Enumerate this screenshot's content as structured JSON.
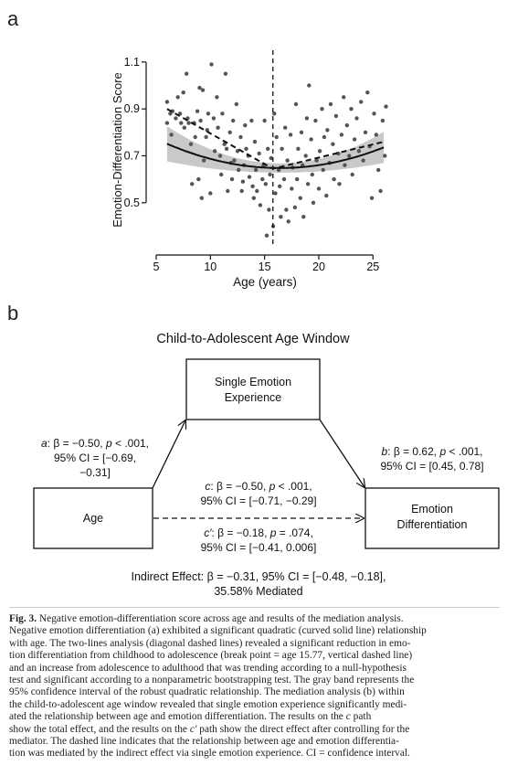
{
  "panel_a_label": "a",
  "panel_b_label": "b",
  "chart_data": {
    "type": "scatter",
    "title": "",
    "xlabel": "Age (years)",
    "ylabel": "Emotion-Differentiation Score",
    "xlim": [
      5,
      27
    ],
    "ylim": [
      0.32,
      1.15
    ],
    "xticks": [
      5,
      10,
      15,
      20,
      25
    ],
    "yticks": [
      0.5,
      0.7,
      0.9,
      1.1
    ],
    "ytick_labels": [
      "0.5",
      "0.7",
      "0.9",
      "1.1"
    ],
    "break_point": 15.77,
    "grid": false,
    "points": [
      [
        6.0,
        0.93
      ],
      [
        6.0,
        0.84
      ],
      [
        6.3,
        0.88
      ],
      [
        6.4,
        0.79
      ],
      [
        6.5,
        0.89
      ],
      [
        6.8,
        0.86
      ],
      [
        7.0,
        0.95
      ],
      [
        7.2,
        0.88
      ],
      [
        7.3,
        0.84
      ],
      [
        7.5,
        0.97
      ],
      [
        7.6,
        0.82
      ],
      [
        7.8,
        1.05
      ],
      [
        7.9,
        0.86
      ],
      [
        8.0,
        0.84
      ],
      [
        8.2,
        0.75
      ],
      [
        8.3,
        0.58
      ],
      [
        8.5,
        0.84
      ],
      [
        8.6,
        0.78
      ],
      [
        8.8,
        0.89
      ],
      [
        8.9,
        0.6
      ],
      [
        9.0,
        0.99
      ],
      [
        9.1,
        0.85
      ],
      [
        9.2,
        0.52
      ],
      [
        9.3,
        0.98
      ],
      [
        9.4,
        0.68
      ],
      [
        9.6,
        0.78
      ],
      [
        9.7,
        0.81
      ],
      [
        9.8,
        0.88
      ],
      [
        10.0,
        0.54
      ],
      [
        10.1,
        1.09
      ],
      [
        10.3,
        0.86
      ],
      [
        10.4,
        0.72
      ],
      [
        10.6,
        0.95
      ],
      [
        10.7,
        0.82
      ],
      [
        10.9,
        0.7
      ],
      [
        11.0,
        0.62
      ],
      [
        11.1,
        0.88
      ],
      [
        11.3,
        0.75
      ],
      [
        11.4,
        1.05
      ],
      [
        11.5,
        0.73
      ],
      [
        11.6,
        0.55
      ],
      [
        11.8,
        0.8
      ],
      [
        11.9,
        0.67
      ],
      [
        12.0,
        0.6
      ],
      [
        12.1,
        0.85
      ],
      [
        12.2,
        0.68
      ],
      [
        12.4,
        0.92
      ],
      [
        12.5,
        0.72
      ],
      [
        12.6,
        0.64
      ],
      [
        12.8,
        0.78
      ],
      [
        12.9,
        0.55
      ],
      [
        13.0,
        0.59
      ],
      [
        13.1,
        0.66
      ],
      [
        13.2,
        0.83
      ],
      [
        13.3,
        0.73
      ],
      [
        13.5,
        0.7
      ],
      [
        13.6,
        0.61
      ],
      [
        13.8,
        0.85
      ],
      [
        13.9,
        0.57
      ],
      [
        14.0,
        0.52
      ],
      [
        14.1,
        0.76
      ],
      [
        14.2,
        0.64
      ],
      [
        14.3,
        0.55
      ],
      [
        14.5,
        0.71
      ],
      [
        14.6,
        0.49
      ],
      [
        14.8,
        0.6
      ],
      [
        14.9,
        0.66
      ],
      [
        15.0,
        0.85
      ],
      [
        15.1,
        0.58
      ],
      [
        15.2,
        0.36
      ],
      [
        15.3,
        0.73
      ],
      [
        15.4,
        0.47
      ],
      [
        15.5,
        0.62
      ],
      [
        15.6,
        0.69
      ],
      [
        15.8,
        0.4
      ],
      [
        15.9,
        0.88
      ],
      [
        16.0,
        0.54
      ],
      [
        16.1,
        0.78
      ],
      [
        16.3,
        0.64
      ],
      [
        16.4,
        0.57
      ],
      [
        16.5,
        0.44
      ],
      [
        16.6,
        0.73
      ],
      [
        16.8,
        0.6
      ],
      [
        16.9,
        0.82
      ],
      [
        17.0,
        0.47
      ],
      [
        17.1,
        0.68
      ],
      [
        17.2,
        0.42
      ],
      [
        17.4,
        0.79
      ],
      [
        17.5,
        0.56
      ],
      [
        17.6,
        0.65
      ],
      [
        17.8,
        0.48
      ],
      [
        17.9,
        0.92
      ],
      [
        18.0,
        0.6
      ],
      [
        18.1,
        0.73
      ],
      [
        18.3,
        0.52
      ],
      [
        18.4,
        0.8
      ],
      [
        18.5,
        0.66
      ],
      [
        18.6,
        0.44
      ],
      [
        18.8,
        0.7
      ],
      [
        18.9,
        0.86
      ],
      [
        19.0,
        0.58
      ],
      [
        19.1,
        1.0
      ],
      [
        19.3,
        0.77
      ],
      [
        19.4,
        0.62
      ],
      [
        19.5,
        0.5
      ],
      [
        19.7,
        0.85
      ],
      [
        19.8,
        0.68
      ],
      [
        20.0,
        0.56
      ],
      [
        20.1,
        0.72
      ],
      [
        20.3,
        0.9
      ],
      [
        20.4,
        0.64
      ],
      [
        20.5,
        0.78
      ],
      [
        20.7,
        0.53
      ],
      [
        20.8,
        0.81
      ],
      [
        21.0,
        0.67
      ],
      [
        21.1,
        0.92
      ],
      [
        21.3,
        0.75
      ],
      [
        21.4,
        0.6
      ],
      [
        21.6,
        0.87
      ],
      [
        21.8,
        0.71
      ],
      [
        21.9,
        0.58
      ],
      [
        22.1,
        0.79
      ],
      [
        22.3,
        0.95
      ],
      [
        22.4,
        0.66
      ],
      [
        22.6,
        0.83
      ],
      [
        22.8,
        0.7
      ],
      [
        23.0,
        0.9
      ],
      [
        23.1,
        0.62
      ],
      [
        23.3,
        0.77
      ],
      [
        23.5,
        0.86
      ],
      [
        23.7,
        0.72
      ],
      [
        23.9,
        0.93
      ],
      [
        24.1,
        0.68
      ],
      [
        24.3,
        0.8
      ],
      [
        24.5,
        0.97
      ],
      [
        24.7,
        0.74
      ],
      [
        24.9,
        0.52
      ],
      [
        25.1,
        0.88
      ],
      [
        25.3,
        0.79
      ],
      [
        25.5,
        0.64
      ],
      [
        25.7,
        0.55
      ],
      [
        25.9,
        0.85
      ],
      [
        26.1,
        0.7
      ],
      [
        26.2,
        0.91
      ]
    ],
    "quadratic_fit": {
      "a": 0.000956,
      "vertex_x": 16.4,
      "vertex_y": 0.648
    },
    "confidence_band_halfwidth": {
      "min": 0.02,
      "max_at_edges": 0.075
    },
    "two_lines": {
      "x_start": 6.0,
      "y_start": 0.9,
      "x_break": 15.77,
      "y_break": 0.645,
      "x_end": 26.0,
      "y_end": 0.76
    }
  },
  "panel_b": {
    "title": "Child-to-Adolescent Age Window",
    "mediator_line1": "Single Emotion",
    "mediator_line2": "Experience",
    "x_label": "Age",
    "y_line1": "Emotion",
    "y_line2": "Differentiation",
    "path_a": {
      "line1_italic": "a",
      "line1_rest": ": β = −0.50, ",
      "line1_p": "p",
      "line1_end": " < .001,",
      "line2": "95% CI = [−0.69,",
      "line3": "−0.31]"
    },
    "path_b": {
      "line1_italic": "b",
      "line1_rest": ": β = 0.62, ",
      "line1_p": "p",
      "line1_end": " < .001,",
      "line2": "95% CI = [0.45, 0.78]"
    },
    "path_c": {
      "line1_italic": "c",
      "line1_rest": ": β = −0.50, ",
      "line1_p": "p",
      "line1_end": " < .001,",
      "line2": "95% CI = [−0.71, −0.29]"
    },
    "path_c_prime": {
      "line1_italic": "c′",
      "line1_rest": ": β = −0.18, ",
      "line1_p": "p",
      "line1_end": " = .074,",
      "line2": "95% CI = [−0.41, 0.006]"
    },
    "indirect_line1": "Indirect Effect: β = −0.31, 95% CI = [−0.48, −0.18],",
    "indirect_line2": "35.58% Mediated"
  },
  "caption": {
    "fig_label": "Fig. 3.",
    "l1": "Negative emotion-differentiation score across age and results of the mediation analysis.",
    "l2": "Negative emotion differentiation (a) exhibited a significant quadratic (curved solid line) relationship",
    "l3": "with age. The two-lines analysis (diagonal dashed lines) revealed a significant reduction in emo-",
    "l4": "tion differentiation from childhood to adolescence (break point = age 15.77, vertical dashed line)",
    "l5": "and an increase from adolescence to adulthood that was trending according to a null-hypothesis",
    "l6": "test and significant according to a nonparametric bootstrapping test. The gray band represents the",
    "l7": "95% confidence interval of the robust quadratic relationship. The mediation analysis (b) within",
    "l8": "the child-to-adolescent age window revealed that single emotion experience significantly medi-",
    "l9": "ated the relationship between age and emotion differentiation. The results on the",
    "l9_c": "c",
    "l9_end": "path",
    "l10_a": "show the total effect, and the results on the",
    "l10_c": "c′",
    "l10_end": "path show the direct effect after controlling for the",
    "l11": "mediator. The dashed line indicates that the relationship between age and emotion differentia-",
    "l12": "tion was mediated by the indirect effect via single emotion experience. CI = confidence interval."
  }
}
